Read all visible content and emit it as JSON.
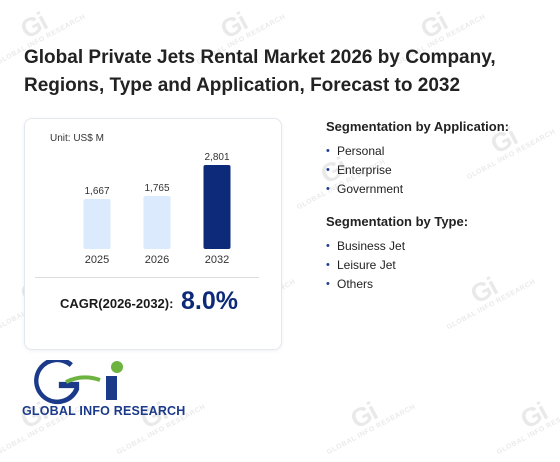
{
  "title_line1": "Global Private Jets Rental Market 2026 by Company,",
  "title_line2": "Regions, Type and Application, Forecast to 2032",
  "unit_label": "Unit: US$ M",
  "chart_data": {
    "type": "bar",
    "categories": [
      "2025",
      "2026",
      "2032"
    ],
    "values": [
      1667,
      1765,
      2801
    ],
    "value_labels": [
      "1,667",
      "1,765",
      "2,801"
    ],
    "bar_colors": [
      "#dbeafd",
      "#dbeafd",
      "#0d2a7a"
    ],
    "ylim": [
      0,
      3000
    ],
    "title": "",
    "xlabel": "",
    "ylabel": ""
  },
  "cagr": {
    "label": "CAGR(2026-2032):",
    "value": "8.0%"
  },
  "segmentation_application": {
    "heading": "Segmentation by Application:",
    "items": [
      "Personal",
      "Enterprise",
      "Government"
    ]
  },
  "segmentation_type": {
    "heading": "Segmentation by Type:",
    "items": [
      "Business Jet",
      "Leisure Jet",
      "Others"
    ]
  },
  "bullet_char": "•",
  "logo": {
    "text": "GLOBAL INFO RESEARCH",
    "mark": "Gi"
  },
  "watermark": {
    "mark": "Gi",
    "text": "GLOBAL INFO RESEARCH"
  },
  "colors": {
    "accent": "#0d2a7a",
    "light_bar": "#dbeafd",
    "logo_blue": "#1b3a8a",
    "logo_green": "#6db33f"
  }
}
